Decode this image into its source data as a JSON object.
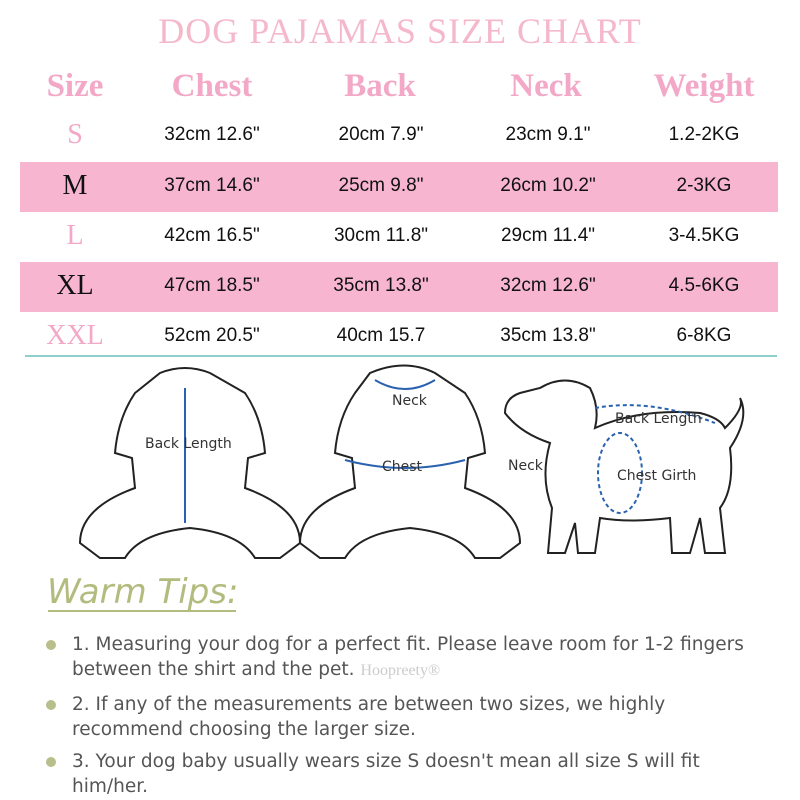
{
  "title": "DOG PAJAMAS SIZE CHART",
  "headers": [
    "Size",
    "Chest",
    "Back",
    "Neck",
    "Weight"
  ],
  "rows": [
    {
      "size": "S",
      "chest": "32cm  12.6\"",
      "back": "20cm  7.9\"",
      "neck": "23cm  9.1\"",
      "weight": "1.2-2KG"
    },
    {
      "size": "M",
      "chest": "37cm  14.6\"",
      "back": "25cm  9.8\"",
      "neck": "26cm  10.2\"",
      "weight": "2-3KG"
    },
    {
      "size": "L",
      "chest": "42cm  16.5\"",
      "back": "30cm  11.8\"",
      "neck": "29cm  11.4\"",
      "weight": "3-4.5KG"
    },
    {
      "size": "XL",
      "chest": "47cm  18.5\"",
      "back": "35cm  13.8\"",
      "neck": "32cm  12.6\"",
      "weight": "4.5-6KG"
    },
    {
      "size": "XXL",
      "chest": "52cm  20.5\"",
      "back": "40cm  15.7",
      "neck": "35cm  13.8\"",
      "weight": "6-8KG"
    }
  ],
  "colors": {
    "title": "#f5b8cb",
    "header": "#f2a8c6",
    "band": "#f7b5d0",
    "divider": "#8fd0cf",
    "tips": "#b3bb7e"
  },
  "illustrations": {
    "back_view": {
      "label": "Back Length"
    },
    "front_view": {
      "neck": "Neck",
      "chest": "Chest"
    },
    "dog": {
      "back": "Back Length",
      "neck": "Neck",
      "chest": "Chest Girth"
    }
  },
  "tips": {
    "title": "Warm Tips:",
    "items": [
      "1. Measuring your dog for a perfect fit. Please leave room for 1-2 fingers between the shirt and the pet.",
      "2. If any of the measurements are between two sizes, we highly recommend choosing the larger size.",
      "3. Your dog baby usually wears size S doesn't mean all size S will fit him/her."
    ],
    "watermark": "Hoopreety®"
  }
}
